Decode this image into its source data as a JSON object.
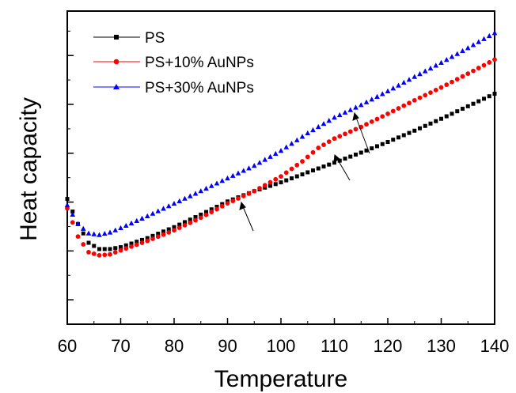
{
  "chart_data": {
    "type": "scatter",
    "xlabel": "Temperature",
    "ylabel": "Heat capacity",
    "xlim": [
      60,
      140
    ],
    "ylim": [
      0,
      100
    ],
    "xticks": [
      60,
      70,
      80,
      90,
      100,
      110,
      120,
      130,
      140
    ],
    "xtick_labels": [
      "60",
      "70",
      "80",
      "90",
      "100",
      "110",
      "120",
      "130",
      "140"
    ],
    "yticks_labeled": false,
    "grid": false,
    "legend_position": "top-left",
    "series": [
      {
        "name": "PS",
        "color": "#000000",
        "marker": "square",
        "points": [
          [
            60,
            40
          ],
          [
            62,
            32
          ],
          [
            64,
            26
          ],
          [
            66,
            24
          ],
          [
            68,
            24
          ],
          [
            70,
            24.6
          ],
          [
            75,
            27.5
          ],
          [
            80,
            31
          ],
          [
            85,
            35
          ],
          [
            90,
            39.2
          ],
          [
            95,
            42.5
          ],
          [
            100,
            45.3
          ],
          [
            105,
            48.5
          ],
          [
            110,
            51.6
          ],
          [
            115,
            54.8
          ],
          [
            120,
            58.2
          ],
          [
            125,
            61.8
          ],
          [
            130,
            65.6
          ],
          [
            135,
            69.6
          ],
          [
            140,
            73.6
          ]
        ]
      },
      {
        "name": "PS+10% AuNPs",
        "color": "#ff0000",
        "marker": "circle",
        "points": [
          [
            60,
            37
          ],
          [
            62,
            28
          ],
          [
            64,
            23
          ],
          [
            66,
            22
          ],
          [
            68,
            22.3
          ],
          [
            70,
            23.6
          ],
          [
            75,
            26.6
          ],
          [
            80,
            30
          ],
          [
            85,
            34
          ],
          [
            90,
            38.6
          ],
          [
            95,
            42.5
          ],
          [
            100,
            47.2
          ],
          [
            104,
            52
          ],
          [
            107,
            56.3
          ],
          [
            110,
            59.3
          ],
          [
            115,
            63
          ],
          [
            120,
            67.2
          ],
          [
            125,
            71.5
          ],
          [
            130,
            75.6
          ],
          [
            135,
            80
          ],
          [
            140,
            84.5
          ]
        ]
      },
      {
        "name": "PS+30% AuNPs",
        "color": "#0000ff",
        "marker": "triangle",
        "points": [
          [
            60,
            38
          ],
          [
            62,
            32
          ],
          [
            64,
            29
          ],
          [
            66,
            28.5
          ],
          [
            68,
            29.3
          ],
          [
            70,
            30.7
          ],
          [
            75,
            34.5
          ],
          [
            80,
            38.5
          ],
          [
            85,
            42.5
          ],
          [
            90,
            46.6
          ],
          [
            95,
            50.6
          ],
          [
            100,
            55.4
          ],
          [
            105,
            61
          ],
          [
            110,
            66
          ],
          [
            115,
            70
          ],
          [
            120,
            74.4
          ],
          [
            125,
            79
          ],
          [
            130,
            83.5
          ],
          [
            135,
            88.2
          ],
          [
            140,
            93
          ]
        ]
      }
    ]
  }
}
